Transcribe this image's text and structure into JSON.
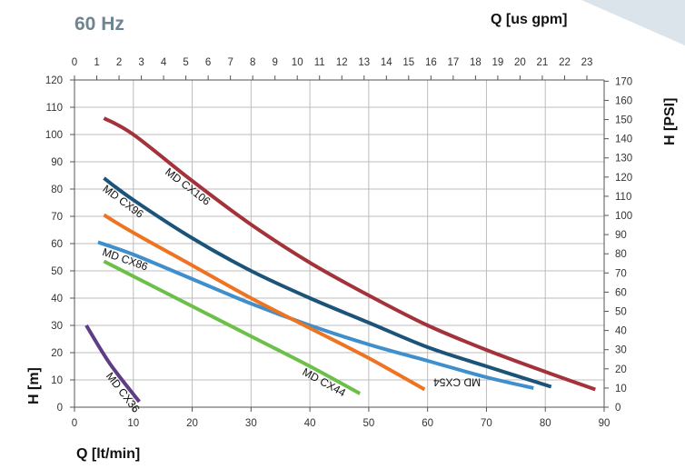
{
  "chart_data": {
    "type": "line",
    "frequency": "60 Hz",
    "x_top_label": "Q [us gpm]",
    "x_bottom_label": "Q [lt/min]",
    "y_left_label": "H [m]",
    "y_right_label": "H [PSI]",
    "x_bottom_ticks": [
      "0",
      "10",
      "20",
      "30",
      "40",
      "50",
      "60",
      "70",
      "80",
      "90"
    ],
    "x_top_ticks": [
      "0",
      "1",
      "2",
      "3",
      "4",
      "5",
      "6",
      "7",
      "8",
      "9",
      "10",
      "11",
      "12",
      "13",
      "14",
      "15",
      "16",
      "17",
      "18",
      "19",
      "20",
      "21",
      "22",
      "23"
    ],
    "y_left_ticks": [
      "0",
      "10",
      "20",
      "30",
      "40",
      "50",
      "60",
      "70",
      "80",
      "90",
      "100",
      "110",
      "120"
    ],
    "y_right_ticks": [
      "0",
      "10",
      "20",
      "30",
      "40",
      "50",
      "60",
      "70",
      "80",
      "90",
      "100",
      "110",
      "120",
      "130",
      "140",
      "150",
      "160",
      "170"
    ],
    "xlim": [
      0,
      90
    ],
    "ylim": [
      0,
      120
    ],
    "grid": true,
    "series": [
      {
        "name": "MD CX106",
        "color": "#a3323a",
        "x": [
          5,
          10,
          20,
          30,
          40,
          50,
          60,
          70,
          80,
          88.5
        ],
        "y": [
          106,
          100,
          83,
          67,
          53,
          41,
          30,
          21,
          13,
          6.5
        ]
      },
      {
        "name": "MD CX96",
        "color": "#1b5478",
        "x": [
          5,
          10,
          20,
          30,
          40,
          50,
          60,
          70,
          81
        ],
        "y": [
          84,
          76,
          62,
          50,
          40,
          31,
          22,
          15,
          7.5
        ]
      },
      {
        "name": "MD CX86",
        "color": "#3f8fcc",
        "x": [
          4,
          10,
          20,
          30,
          40,
          50,
          60,
          70,
          78
        ],
        "y": [
          60.5,
          56,
          47,
          38,
          30,
          23,
          17,
          11,
          7
        ]
      },
      {
        "name": "MD CX54",
        "color": "#ee7421",
        "x": [
          5,
          10,
          20,
          30,
          40,
          50,
          59.5
        ],
        "y": [
          70.5,
          64,
          52,
          40,
          29,
          18,
          6.5
        ]
      },
      {
        "name": "MD CX44",
        "color": "#6cc04a",
        "x": [
          5,
          10,
          20,
          30,
          40,
          48.5
        ],
        "y": [
          53.5,
          48,
          37,
          26,
          15,
          5
        ]
      },
      {
        "name": "MD CX36",
        "color": "#5e3d85",
        "x": [
          2,
          6,
          11
        ],
        "y": [
          30,
          16,
          2
        ]
      }
    ]
  }
}
